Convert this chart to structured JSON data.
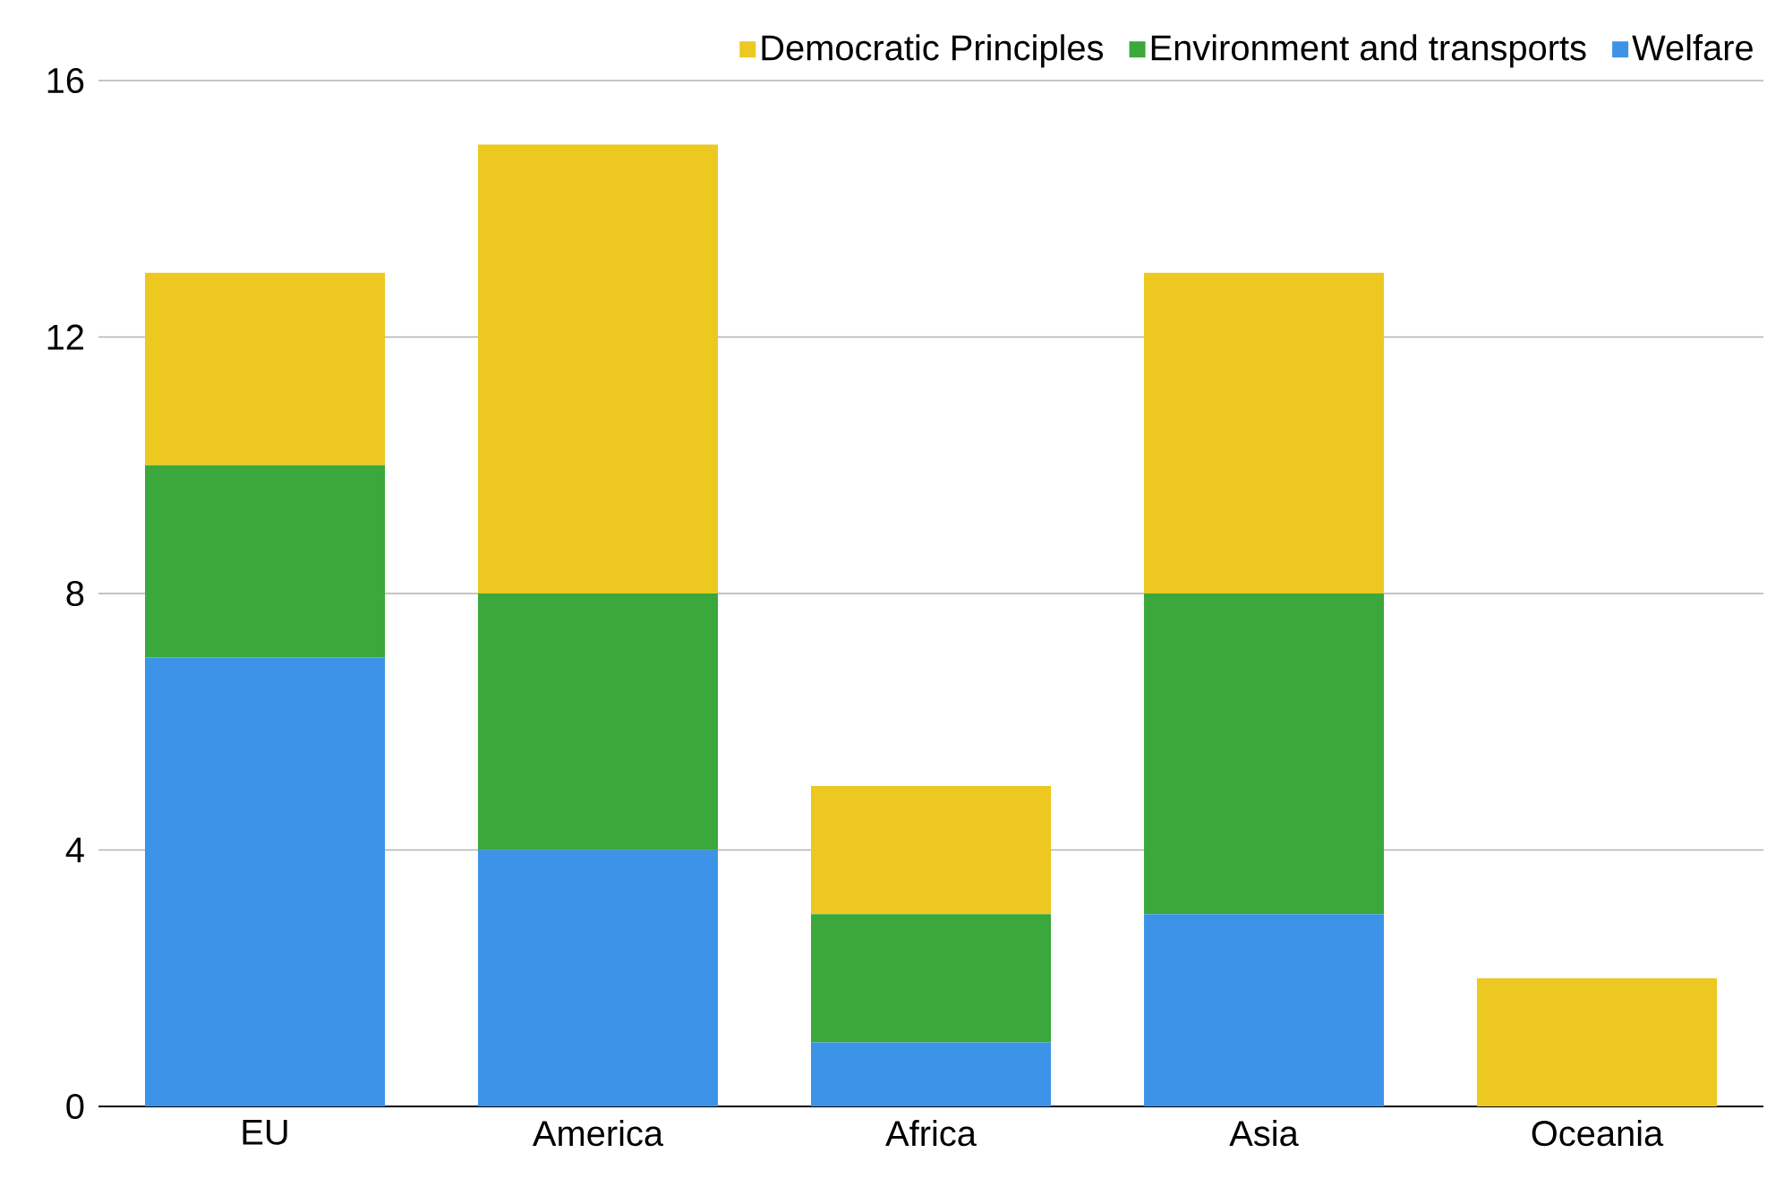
{
  "chart_data": {
    "type": "bar",
    "stacked": true,
    "categories": [
      "EU",
      "America",
      "Africa",
      "Asia",
      "Oceania"
    ],
    "series": [
      {
        "name": "Welfare",
        "color": "#3d93e8",
        "values": [
          7,
          4,
          1,
          3,
          0
        ]
      },
      {
        "name": "Environment and transports",
        "color": "#3aa83a",
        "values": [
          3,
          4,
          2,
          5,
          0
        ]
      },
      {
        "name": "Democratic Principles",
        "color": "#ecc820",
        "values": [
          3,
          7,
          2,
          5,
          2
        ]
      }
    ],
    "ylim": [
      0,
      16
    ],
    "yticks": [
      0,
      4,
      8,
      12,
      16
    ],
    "grid": "y",
    "legend": "top right"
  }
}
